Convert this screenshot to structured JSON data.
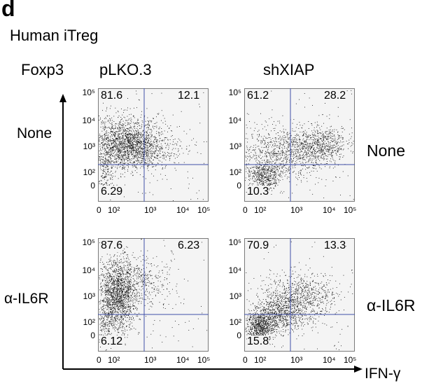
{
  "panel_letter": "d",
  "subtitle": "Human iTreg",
  "y_marker": "Foxp3",
  "x_marker": "IFN-γ",
  "columns": [
    "pLKO.3",
    "shXIAP"
  ],
  "rows_left": [
    "None",
    "α-IL6R"
  ],
  "rows_right": [
    "None",
    "α-IL6R"
  ],
  "colors": {
    "dots": "#111111",
    "gate": "#3f4fa8",
    "frame": "#7a7a7a",
    "plot_bg": "#f4f4f4"
  },
  "chart_data": {
    "type": "scatter",
    "description_type": "flow-cytometry-dot-plots",
    "x_axis": {
      "label": "IFN-γ",
      "ticks": [
        "0",
        "10²",
        "10³",
        "10⁴",
        "10⁵"
      ]
    },
    "y_axis": {
      "label": "Foxp3",
      "ticks": [
        "10⁵",
        "10⁴",
        "10³",
        "10²",
        "0"
      ]
    },
    "panels": [
      {
        "row": "None",
        "column": "pLKO.3",
        "upper_left": "81.6",
        "upper_right": "12.1",
        "lower_left": "6.29"
      },
      {
        "row": "None",
        "column": "shXIAP",
        "upper_left": "61.2",
        "upper_right": "28.2",
        "lower_left": "10.3"
      },
      {
        "row": "α-IL6R",
        "column": "pLKO.3",
        "upper_left": "87.6",
        "upper_right": "6.23",
        "lower_left": "6.12"
      },
      {
        "row": "α-IL6R",
        "column": "shXIAP",
        "upper_left": "70.9",
        "upper_right": "13.3",
        "lower_left": "15.8"
      }
    ]
  }
}
